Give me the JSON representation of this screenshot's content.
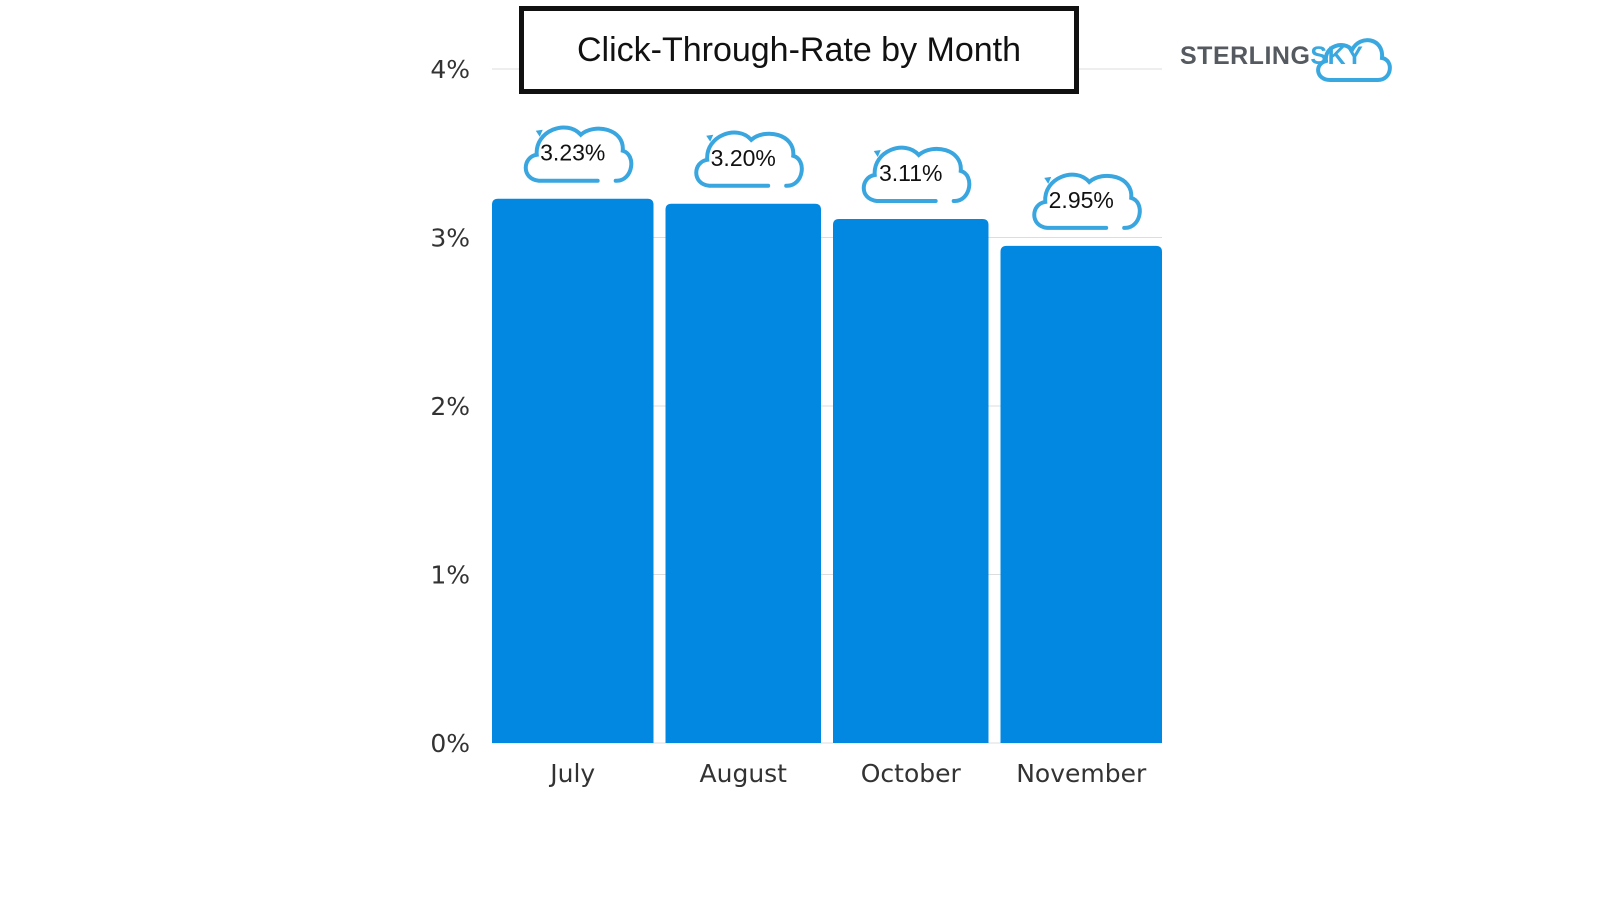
{
  "chart_data": {
    "type": "bar",
    "title": "Click-Through-Rate by Month",
    "categories": [
      "July",
      "August",
      "October",
      "November"
    ],
    "values": [
      3.23,
      3.2,
      3.11,
      2.95
    ],
    "data_labels": [
      "3.23%",
      "3.20%",
      "3.11%",
      "2.95%"
    ],
    "yticks": [
      0,
      1,
      2,
      3,
      4
    ],
    "ytick_labels": [
      "0%",
      "1%",
      "2%",
      "3%",
      "4%"
    ],
    "ylim": [
      0,
      4
    ],
    "xlabel": "",
    "ylabel": "",
    "grid": true,
    "legend": "none",
    "colors": {
      "bar": "#0288e0",
      "grid": "#dddddd",
      "cloud": "#39a6e0"
    }
  },
  "logo": {
    "part1": "STERLING",
    "part2": "SKY"
  }
}
